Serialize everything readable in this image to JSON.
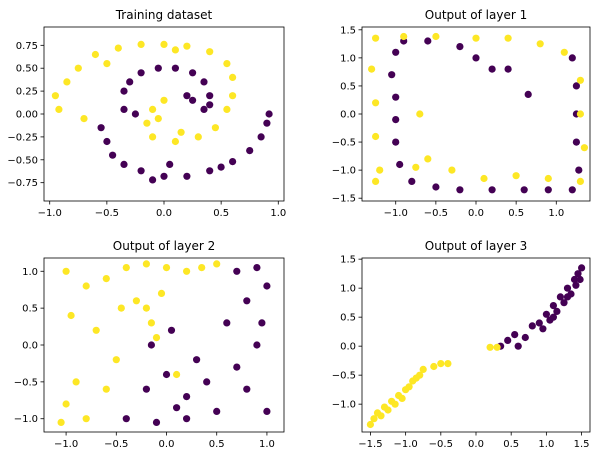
{
  "colors": {
    "class0": "#440154",
    "class1": "#fde725",
    "axis": "#000000",
    "background": "#ffffff"
  },
  "chart_data": [
    {
      "type": "scatter",
      "title": "Training dataset",
      "xlim": [
        -1.05,
        1.05
      ],
      "ylim": [
        -0.95,
        0.95
      ],
      "xticks": [
        -1.0,
        -0.5,
        0.0,
        0.5,
        1.0
      ],
      "xtick_labels": [
        "−1.0",
        "−0.5",
        "0.0",
        "0.5",
        "1.0"
      ],
      "yticks": [
        -0.75,
        -0.5,
        -0.25,
        0.0,
        0.25,
        0.5,
        0.75
      ],
      "ytick_labels": [
        "−0.75",
        "−0.50",
        "−0.25",
        "0.00",
        "0.25",
        "0.50",
        "0.75"
      ],
      "grid": false,
      "series": [
        {
          "class": 0,
          "color": "#440154",
          "points": [
            [
              -0.55,
              -0.15
            ],
            [
              -0.5,
              -0.3
            ],
            [
              -0.45,
              -0.45
            ],
            [
              -0.35,
              -0.55
            ],
            [
              -0.2,
              -0.62
            ],
            [
              0.0,
              -0.68
            ],
            [
              0.2,
              -0.68
            ],
            [
              0.4,
              -0.62
            ],
            [
              0.6,
              -0.52
            ],
            [
              0.75,
              -0.4
            ],
            [
              0.85,
              -0.25
            ],
            [
              0.9,
              -0.1
            ],
            [
              0.92,
              0.0
            ],
            [
              -0.35,
              0.05
            ],
            [
              -0.35,
              0.25
            ],
            [
              -0.3,
              0.35
            ],
            [
              -0.2,
              0.45
            ],
            [
              -0.05,
              0.5
            ],
            [
              0.1,
              0.5
            ],
            [
              0.25,
              0.45
            ],
            [
              0.35,
              0.35
            ],
            [
              0.4,
              0.2
            ],
            [
              0.4,
              0.1
            ],
            [
              0.35,
              0.05
            ],
            [
              0.25,
              0.15
            ],
            [
              0.2,
              0.2
            ],
            [
              -0.25,
              0.0
            ],
            [
              0.05,
              -0.55
            ],
            [
              0.5,
              -0.58
            ],
            [
              -0.1,
              -0.72
            ]
          ]
        },
        {
          "class": 1,
          "color": "#fde725",
          "points": [
            [
              -0.95,
              0.2
            ],
            [
              -0.92,
              0.05
            ],
            [
              -0.85,
              0.35
            ],
            [
              -0.75,
              0.5
            ],
            [
              -0.6,
              0.65
            ],
            [
              -0.4,
              0.72
            ],
            [
              -0.2,
              0.76
            ],
            [
              0.0,
              0.76
            ],
            [
              0.2,
              0.74
            ],
            [
              0.4,
              0.68
            ],
            [
              0.55,
              0.55
            ],
            [
              0.6,
              0.4
            ],
            [
              0.6,
              0.2
            ],
            [
              0.55,
              0.05
            ],
            [
              0.45,
              -0.15
            ],
            [
              0.3,
              -0.25
            ],
            [
              0.1,
              -0.3
            ],
            [
              -0.1,
              -0.25
            ],
            [
              -0.15,
              -0.1
            ],
            [
              -0.1,
              0.05
            ],
            [
              0.0,
              0.15
            ],
            [
              -0.05,
              -0.05
            ],
            [
              0.15,
              -0.2
            ],
            [
              -0.7,
              -0.05
            ],
            [
              -0.5,
              0.55
            ],
            [
              0.1,
              0.7
            ]
          ]
        }
      ]
    },
    {
      "type": "scatter",
      "title": "Output of layer 1",
      "xlim": [
        -1.42,
        1.42
      ],
      "ylim": [
        -1.55,
        1.55
      ],
      "xticks": [
        -1.0,
        -0.5,
        0.0,
        0.5,
        1.0
      ],
      "xtick_labels": [
        "−1.0",
        "−0.5",
        "0.0",
        "0.5",
        "1.0"
      ],
      "yticks": [
        -1.5,
        -1.0,
        -0.5,
        0.0,
        0.5,
        1.0,
        1.5
      ],
      "ytick_labels": [
        "−1.5",
        "−1.0",
        "−0.5",
        "0.0",
        "0.5",
        "1.0",
        "1.5"
      ],
      "grid": false,
      "series": [
        {
          "class": 0,
          "color": "#440154",
          "points": [
            [
              -1.0,
              1.1
            ],
            [
              -1.05,
              0.7
            ],
            [
              -1.0,
              0.3
            ],
            [
              -1.0,
              -0.1
            ],
            [
              -1.0,
              -0.5
            ],
            [
              -0.95,
              -0.9
            ],
            [
              -0.8,
              -1.2
            ],
            [
              -0.5,
              -1.3
            ],
            [
              -0.2,
              -1.35
            ],
            [
              0.2,
              -1.35
            ],
            [
              0.6,
              -1.35
            ],
            [
              0.9,
              -1.35
            ],
            [
              1.2,
              -1.35
            ],
            [
              1.28,
              -1.0
            ],
            [
              1.25,
              -0.5
            ],
            [
              1.25,
              0.0
            ],
            [
              1.25,
              0.5
            ],
            [
              1.2,
              1.0
            ],
            [
              -0.6,
              1.3
            ],
            [
              -0.2,
              1.2
            ],
            [
              0.0,
              1.0
            ],
            [
              0.2,
              0.8
            ],
            [
              0.4,
              0.8
            ],
            [
              0.65,
              0.35
            ],
            [
              -0.9,
              1.3
            ]
          ]
        },
        {
          "class": 1,
          "color": "#fde725",
          "points": [
            [
              -1.25,
              1.35
            ],
            [
              -0.9,
              1.38
            ],
            [
              -0.5,
              1.38
            ],
            [
              0.0,
              1.35
            ],
            [
              0.4,
              1.35
            ],
            [
              0.8,
              1.25
            ],
            [
              1.1,
              1.1
            ],
            [
              1.3,
              0.6
            ],
            [
              1.3,
              0.0
            ],
            [
              1.35,
              -0.6
            ],
            [
              1.3,
              -1.2
            ],
            [
              0.9,
              -1.15
            ],
            [
              0.5,
              -1.1
            ],
            [
              0.1,
              -1.15
            ],
            [
              -0.3,
              -1.0
            ],
            [
              -0.6,
              -0.8
            ],
            [
              -0.75,
              -0.95
            ],
            [
              -1.2,
              -1.0
            ],
            [
              -1.25,
              -0.4
            ],
            [
              -1.25,
              0.2
            ],
            [
              -1.3,
              0.8
            ],
            [
              -0.7,
              0.0
            ],
            [
              -1.25,
              -1.2
            ]
          ]
        }
      ]
    },
    {
      "type": "scatter",
      "title": "Output of layer 2",
      "xlim": [
        -1.22,
        1.17
      ],
      "ylim": [
        -1.18,
        1.18
      ],
      "xticks": [
        -1.0,
        -0.5,
        0.0,
        0.5,
        1.0
      ],
      "xtick_labels": [
        "−1.0",
        "−0.5",
        "0.0",
        "0.5",
        "1.0"
      ],
      "yticks": [
        -1.0,
        -0.5,
        0.0,
        0.5,
        1.0
      ],
      "ytick_labels": [
        "−1.0",
        "−0.5",
        "0.0",
        "0.5",
        "1.0"
      ],
      "grid": false,
      "series": [
        {
          "class": 0,
          "color": "#440154",
          "points": [
            [
              0.7,
              1.0
            ],
            [
              0.9,
              1.05
            ],
            [
              1.0,
              0.8
            ],
            [
              0.8,
              0.6
            ],
            [
              0.6,
              0.3
            ],
            [
              0.95,
              0.3
            ],
            [
              0.9,
              0.0
            ],
            [
              0.7,
              -0.3
            ],
            [
              0.8,
              -0.6
            ],
            [
              1.0,
              -0.9
            ],
            [
              0.5,
              -0.9
            ],
            [
              0.2,
              -0.7
            ],
            [
              0.0,
              -0.4
            ],
            [
              -0.2,
              -0.6
            ],
            [
              -0.4,
              -1.0
            ],
            [
              -0.1,
              -1.05
            ],
            [
              0.2,
              -1.0
            ],
            [
              0.4,
              -0.5
            ],
            [
              0.3,
              -0.2
            ],
            [
              0.05,
              0.2
            ],
            [
              0.1,
              -0.85
            ],
            [
              -0.15,
              0.0
            ]
          ]
        },
        {
          "class": 1,
          "color": "#fde725",
          "points": [
            [
              -1.0,
              1.0
            ],
            [
              -0.8,
              0.8
            ],
            [
              -0.6,
              0.9
            ],
            [
              -0.4,
              1.05
            ],
            [
              -0.2,
              1.1
            ],
            [
              0.0,
              1.05
            ],
            [
              0.2,
              1.0
            ],
            [
              0.35,
              1.05
            ],
            [
              0.5,
              1.1
            ],
            [
              -0.2,
              0.5
            ],
            [
              -0.15,
              0.3
            ],
            [
              -0.1,
              0.1
            ],
            [
              -0.3,
              0.6
            ],
            [
              -0.7,
              0.2
            ],
            [
              -0.5,
              -0.2
            ],
            [
              -0.9,
              -0.5
            ],
            [
              -1.0,
              -0.8
            ],
            [
              -1.05,
              -1.05
            ],
            [
              -0.8,
              -1.0
            ],
            [
              -0.6,
              -0.6
            ],
            [
              -0.95,
              0.4
            ],
            [
              -0.45,
              0.5
            ],
            [
              0.1,
              -0.4
            ],
            [
              -0.05,
              0.7
            ]
          ]
        }
      ]
    },
    {
      "type": "scatter",
      "title": "Output of layer 3",
      "xlim": [
        -1.62,
        1.62
      ],
      "ylim": [
        -1.48,
        1.52
      ],
      "xticks": [
        -1.5,
        -1.0,
        -0.5,
        0.0,
        0.5,
        1.0,
        1.5
      ],
      "xtick_labels": [
        "−1.5",
        "−1.0",
        "−0.5",
        "0.0",
        "0.5",
        "1.0",
        "1.5"
      ],
      "yticks": [
        -1.0,
        -0.5,
        0.0,
        0.5,
        1.0,
        1.5
      ],
      "ytick_labels": [
        "−1.0",
        "−0.5",
        "0.0",
        "0.5",
        "1.0",
        "1.5"
      ],
      "grid": false,
      "series": [
        {
          "class": 0,
          "color": "#440154",
          "points": [
            [
              0.45,
              0.1
            ],
            [
              0.55,
              0.2
            ],
            [
              0.7,
              0.15
            ],
            [
              0.8,
              0.35
            ],
            [
              0.9,
              0.4
            ],
            [
              1.0,
              0.55
            ],
            [
              1.1,
              0.7
            ],
            [
              1.2,
              0.85
            ],
            [
              1.3,
              1.0
            ],
            [
              1.4,
              1.15
            ],
            [
              1.45,
              1.25
            ],
            [
              1.5,
              1.35
            ],
            [
              0.95,
              0.3
            ],
            [
              1.05,
              0.45
            ],
            [
              1.15,
              0.6
            ],
            [
              1.25,
              0.75
            ],
            [
              1.35,
              0.9
            ],
            [
              1.42,
              1.05
            ],
            [
              0.6,
              0.0
            ],
            [
              0.35,
              0.0
            ],
            [
              1.48,
              1.15
            ],
            [
              1.3,
              0.85
            ],
            [
              1.1,
              0.5
            ]
          ]
        },
        {
          "class": 1,
          "color": "#fde725",
          "points": [
            [
              -1.5,
              -1.35
            ],
            [
              -1.45,
              -1.25
            ],
            [
              -1.4,
              -1.15
            ],
            [
              -1.3,
              -1.05
            ],
            [
              -1.2,
              -0.95
            ],
            [
              -1.1,
              -0.85
            ],
            [
              -1.0,
              -0.75
            ],
            [
              -0.9,
              -0.6
            ],
            [
              -0.8,
              -0.5
            ],
            [
              -0.75,
              -0.4
            ],
            [
              -0.6,
              -0.35
            ],
            [
              -0.5,
              -0.3
            ],
            [
              -0.4,
              -0.3
            ],
            [
              -1.35,
              -1.2
            ],
            [
              -1.25,
              -1.1
            ],
            [
              -1.15,
              -1.0
            ],
            [
              -1.05,
              -0.9
            ],
            [
              -0.95,
              -0.7
            ],
            [
              -0.85,
              -0.55
            ],
            [
              0.2,
              -0.02
            ],
            [
              0.3,
              -0.02
            ]
          ]
        }
      ]
    }
  ]
}
